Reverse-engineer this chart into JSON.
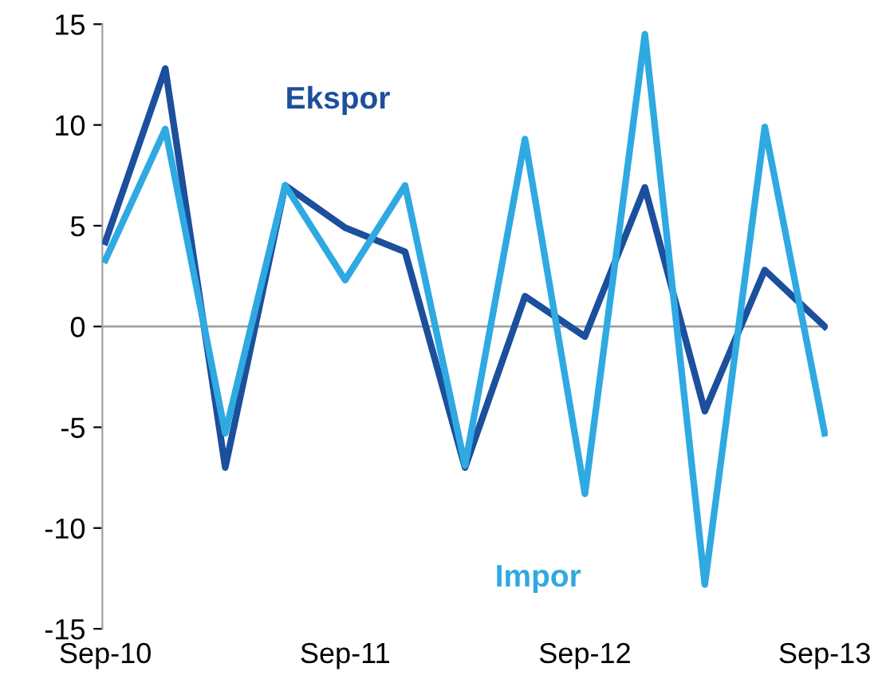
{
  "chart_data": {
    "type": "line",
    "categories": [
      "Sep-10",
      null,
      null,
      null,
      "Sep-11",
      null,
      null,
      null,
      "Sep-12",
      null,
      null,
      null,
      "Sep-13"
    ],
    "series": [
      {
        "name": "Ekspor",
        "color": "#1c4f9c",
        "values": [
          4.2,
          12.8,
          -7,
          7,
          4.9,
          3.7,
          -7,
          1.5,
          -0.5,
          6.9,
          -4.2,
          2.8,
          0
        ]
      },
      {
        "name": "Impor",
        "color": "#2fa9e1",
        "values": [
          3.3,
          9.8,
          -5.3,
          7,
          2.3,
          7,
          -6.9,
          9.3,
          -8.3,
          14.5,
          -12.8,
          9.9,
          -5.3
        ]
      }
    ],
    "ylim": [
      -15,
      15
    ],
    "yticks": [
      -15,
      -10,
      -5,
      0,
      5,
      10,
      15
    ],
    "ref_lines": [
      {
        "axis": "y",
        "value": 0,
        "color": "#a0a0a0"
      }
    ],
    "grid": false,
    "legend": false,
    "marker": "none",
    "line_style": "solid"
  }
}
